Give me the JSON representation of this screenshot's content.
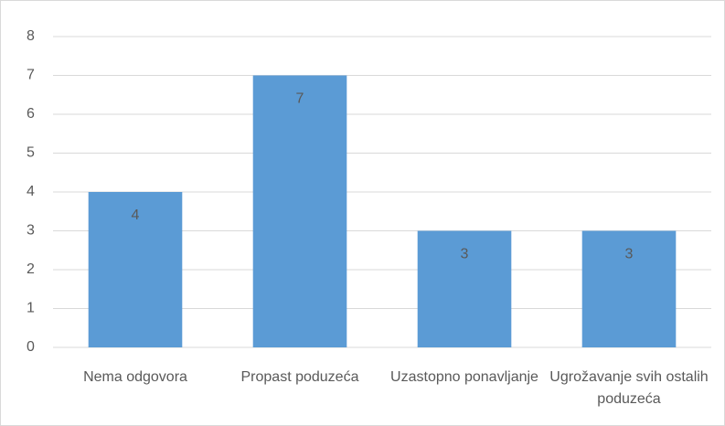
{
  "chart_data": {
    "type": "bar",
    "categories": [
      "Nema odgovora",
      "Propast poduzeća",
      "Uzastopno ponavljanje",
      "Ugrožavanje svih ostalih poduzeća"
    ],
    "values": [
      4,
      7,
      3,
      3
    ],
    "color": "#5b9bd5",
    "ylim": [
      0,
      8
    ],
    "yticks": [
      0,
      1,
      2,
      3,
      4,
      5,
      6,
      7,
      8
    ],
    "grid": true,
    "data_labels": true
  }
}
